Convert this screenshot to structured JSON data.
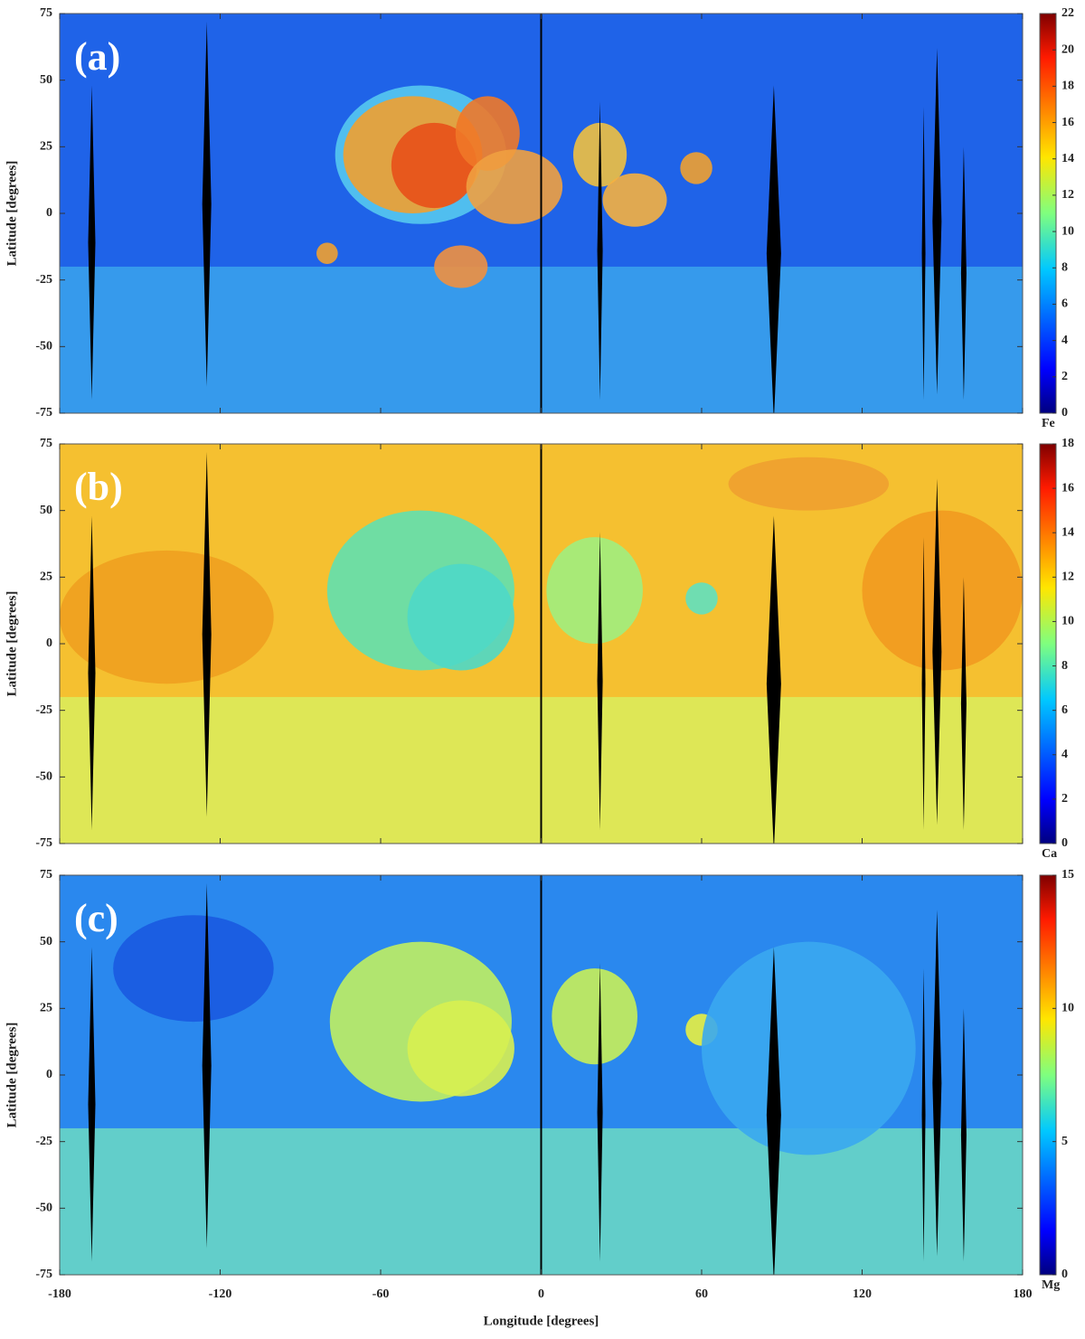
{
  "chart_data": [
    {
      "type": "map",
      "panel_label": "(a)",
      "ylabel": "Latitude [degrees]",
      "xlim": [
        -180,
        180
      ],
      "ylim": [
        -75,
        75
      ],
      "yticks": [
        75,
        50,
        25,
        0,
        -25,
        -50,
        -75
      ],
      "colorbar": {
        "label": "Fe",
        "lim": [
          0,
          22
        ],
        "ticks": [
          0,
          2,
          4,
          6,
          8,
          10,
          12,
          14,
          16,
          18,
          20,
          22
        ],
        "colormap": "jet"
      }
    },
    {
      "type": "map",
      "panel_label": "(b)",
      "ylabel": "Latitude [degrees]",
      "xlim": [
        -180,
        180
      ],
      "ylim": [
        -75,
        75
      ],
      "yticks": [
        75,
        50,
        25,
        0,
        -25,
        -50,
        -75
      ],
      "colorbar": {
        "label": "Ca",
        "lim": [
          0,
          18
        ],
        "ticks": [
          0,
          2,
          4,
          6,
          8,
          10,
          12,
          14,
          16,
          18
        ],
        "colormap": "jet"
      }
    },
    {
      "type": "map",
      "panel_label": "(c)",
      "ylabel": "Latitude [degrees]",
      "xlabel": "Longitude [degrees]",
      "xlim": [
        -180,
        180
      ],
      "ylim": [
        -75,
        75
      ],
      "xticks": [
        -180,
        -120,
        -60,
        0,
        60,
        120,
        180
      ],
      "yticks": [
        75,
        50,
        25,
        0,
        -25,
        -50,
        -75
      ],
      "colorbar": {
        "label": "Mg",
        "lim": [
          0,
          15
        ],
        "ticks": [
          0,
          5,
          10,
          15
        ],
        "colormap": "jet"
      }
    }
  ]
}
